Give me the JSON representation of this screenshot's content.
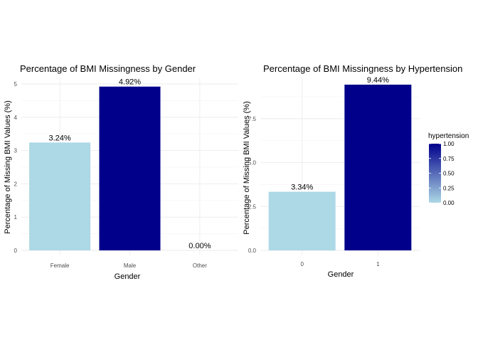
{
  "chart_data": [
    {
      "type": "bar",
      "title": "Percentage of BMI Missingness by Gender",
      "xlabel": "Gender",
      "ylabel": "Percentage of Missing BMI Values (%)",
      "categories": [
        "Female",
        "Male",
        "Other"
      ],
      "values": [
        3.24,
        4.92,
        0.0
      ],
      "data_labels": [
        "3.24%",
        "4.92%",
        "0.00%"
      ],
      "bar_colors": [
        "#add8e6",
        "#00008b",
        "#add8e6"
      ],
      "ylim": [
        0,
        5
      ],
      "yticks": [
        0,
        1,
        2,
        3,
        4,
        5
      ],
      "ytick_labels": [
        "0",
        "1",
        "2",
        "3",
        "4",
        "5"
      ],
      "grid": true,
      "legend": false
    },
    {
      "type": "bar",
      "title": "Percentage of BMI Missingness by Hypertension",
      "xlabel": "Gender",
      "ylabel": "Percentage of Missing BMI Values (%)",
      "categories": [
        "0",
        "1"
      ],
      "values": [
        3.34,
        9.44
      ],
      "data_labels": [
        "3.34%",
        "9.44%"
      ],
      "bar_colors": [
        "#add8e6",
        "#00008b"
      ],
      "ylim": [
        0,
        9.44
      ],
      "yticks": [
        0,
        2.5,
        5,
        7.5
      ],
      "ytick_labels": [
        "0.0",
        "2.5",
        "5.0",
        "7.5"
      ],
      "grid": true,
      "legend": {
        "title": "hypertension",
        "type": "colorbar",
        "placement": "right",
        "low_color": "#add8e6",
        "high_color": "#00008b",
        "range": [
          0,
          1
        ],
        "ticks": [
          0,
          0.25,
          0.5,
          0.75,
          1
        ],
        "tick_labels": [
          "0.00",
          "0.25",
          "0.50",
          "0.75",
          "1.00"
        ]
      }
    }
  ]
}
